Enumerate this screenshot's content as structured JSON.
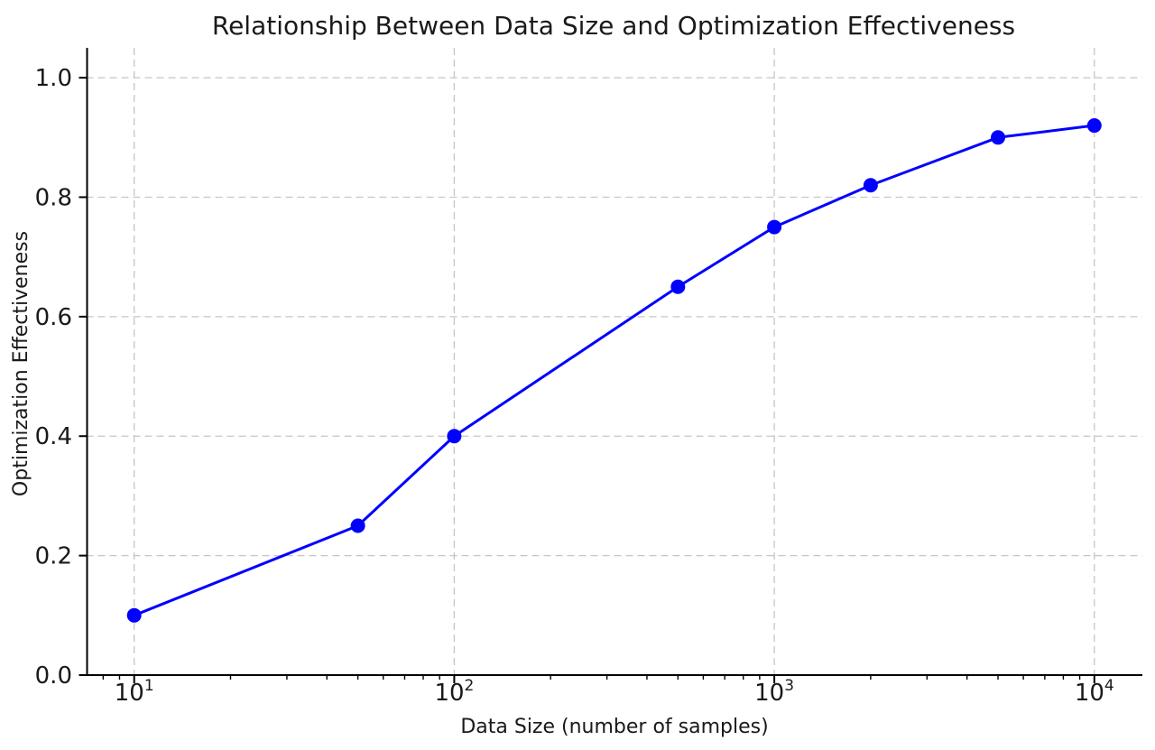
{
  "figure": {
    "background_color": "#ffffff",
    "text_color": "#1a1a1a"
  },
  "chart_data": {
    "type": "line",
    "title": "Relationship Between Data Size and Optimization Effectiveness",
    "xlabel": "Data Size (number of samples)",
    "ylabel": "Optimization Effectiveness",
    "x_scale": "log",
    "x": [
      10,
      50,
      100,
      500,
      1000,
      2000,
      5000,
      10000
    ],
    "values": [
      0.1,
      0.25,
      0.4,
      0.65,
      0.75,
      0.82,
      0.9,
      0.92
    ],
    "series": [
      {
        "name": "optimization-effectiveness",
        "x": [
          10,
          50,
          100,
          500,
          1000,
          2000,
          5000,
          10000
        ],
        "values": [
          0.1,
          0.25,
          0.4,
          0.65,
          0.75,
          0.82,
          0.9,
          0.92
        ]
      }
    ],
    "xlim_log10": [
      0.85,
      4.15
    ],
    "ylim": [
      0,
      1.05
    ],
    "x_major_ticks": [
      {
        "value": 10,
        "base": "10",
        "exp": "1"
      },
      {
        "value": 100,
        "base": "10",
        "exp": "2"
      },
      {
        "value": 1000,
        "base": "10",
        "exp": "3"
      },
      {
        "value": 10000,
        "base": "10",
        "exp": "4"
      }
    ],
    "x_minor_ticks": [
      8,
      9,
      20,
      30,
      40,
      50,
      60,
      70,
      80,
      90,
      200,
      300,
      400,
      500,
      600,
      700,
      800,
      900,
      2000,
      3000,
      4000,
      5000,
      6000,
      7000,
      8000,
      9000
    ],
    "y_ticks": [
      {
        "value": 0.0,
        "label": "0.0"
      },
      {
        "value": 0.2,
        "label": "0.2"
      },
      {
        "value": 0.4,
        "label": "0.4"
      },
      {
        "value": 0.6,
        "label": "0.6"
      },
      {
        "value": 0.8,
        "label": "0.8"
      },
      {
        "value": 1.0,
        "label": "1.0"
      }
    ],
    "grid": {
      "show": true,
      "style": "dashed",
      "color": "#c6c6c6"
    },
    "line_color": "#0000ff",
    "marker": "o",
    "marker_radius": 8,
    "line_width": 3,
    "spine_color": "#000000",
    "legend": null
  }
}
